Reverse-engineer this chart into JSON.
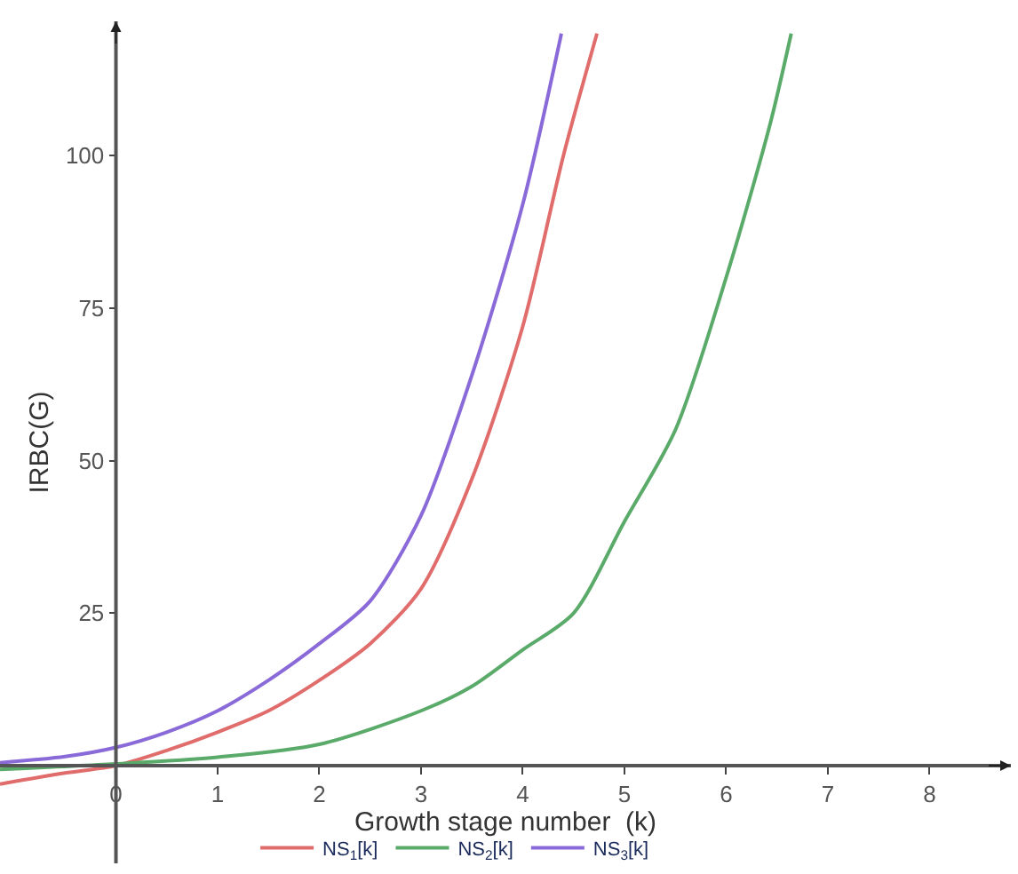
{
  "chart_data": {
    "type": "line",
    "xlabel": "Growth stage number  (k)",
    "ylabel": "IRBC(G)",
    "xlim": [
      -1.14,
      8.8
    ],
    "ylim": [
      -16,
      122
    ],
    "xticks": [
      0,
      1,
      2,
      3,
      4,
      5,
      6,
      7,
      8
    ],
    "yticks": [
      25,
      50,
      75,
      100
    ],
    "legend": "bottom",
    "marker": "none",
    "line_style": "solid",
    "series": [
      {
        "name": "NS$_{1}$[k]",
        "color": "#e06c6c",
        "x": [
          -1.14,
          -0.5,
          0,
          0.5,
          1,
          1.5,
          2,
          2.5,
          3,
          3.5,
          4,
          4.4,
          4.73
        ],
        "values": [
          -3,
          -1.2,
          0,
          2.5,
          5.5,
          9,
          14,
          20,
          29,
          47,
          72,
          100,
          120
        ]
      },
      {
        "name": "NS$_{2}$[k]",
        "color": "#5aaa6a",
        "x": [
          -1.14,
          0,
          1,
          2,
          3,
          3.5,
          4,
          4.5,
          5,
          5.5,
          6,
          6.43,
          6.64
        ],
        "values": [
          -0.6,
          0.3,
          1.4,
          3.5,
          9,
          13,
          19,
          25,
          40,
          55,
          80,
          105,
          120
        ]
      },
      {
        "name": "NS$_{3}$[k]",
        "color": "#8a6ad8",
        "x": [
          -1.14,
          -0.5,
          0,
          0.5,
          1,
          1.5,
          2,
          2.5,
          3,
          3.5,
          4,
          4.38
        ],
        "values": [
          0.5,
          1.5,
          3,
          5.5,
          9,
          14,
          20,
          27,
          41,
          64,
          92,
          120
        ]
      }
    ]
  }
}
